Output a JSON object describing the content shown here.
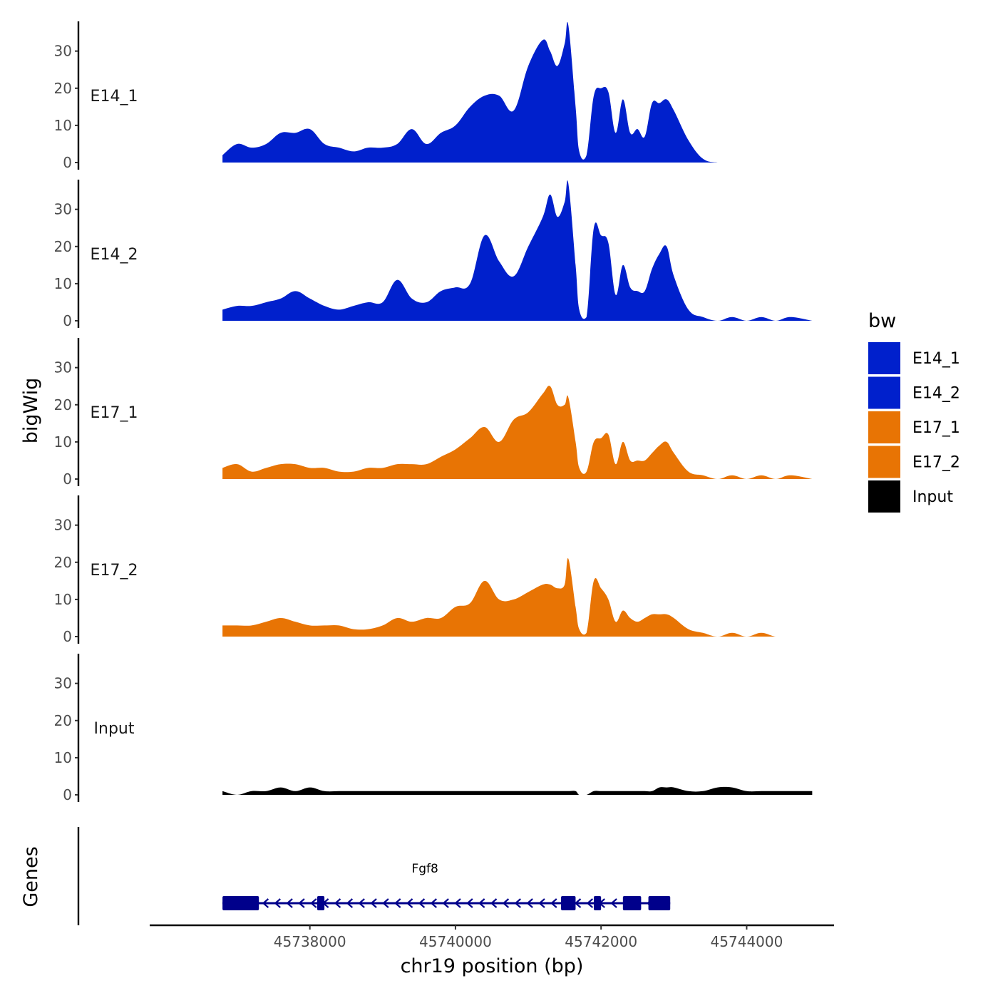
{
  "chart_data": {
    "type": "area",
    "title": "",
    "ylabel": "bigWig",
    "xlabel": "chr19 position (bp)",
    "ylim": [
      0,
      38
    ],
    "yticks": [
      0,
      10,
      20,
      30
    ],
    "xlim": [
      45735800,
      45745200
    ],
    "xticks": [
      45738000,
      45740000,
      45742000,
      45744000
    ],
    "xtick_labels": [
      "45738000",
      "45740000",
      "45742000",
      "45744000"
    ],
    "x": [
      45736800,
      45737000,
      45737200,
      45737400,
      45737600,
      45737800,
      45738000,
      45738200,
      45738400,
      45738600,
      45738800,
      45739000,
      45739200,
      45739400,
      45739600,
      45739800,
      45740000,
      45740200,
      45740400,
      45740600,
      45740800,
      45741000,
      45741200,
      45741300,
      45741400,
      45741500,
      45741550,
      45741650,
      45741700,
      45741800,
      45741900,
      45742000,
      45742100,
      45742200,
      45742300,
      45742400,
      45742500,
      45742600,
      45742700,
      45742800,
      45742900,
      45743000,
      45743200,
      45743400,
      45743600,
      45743800,
      45744000,
      45744200,
      45744400,
      45744600,
      45744900
    ],
    "series": [
      {
        "name": "E14_1",
        "color": "#0020CC",
        "values": [
          2,
          5,
          4,
          5,
          8,
          8,
          9,
          5,
          4,
          3,
          4,
          4,
          5,
          9,
          5,
          8,
          10,
          15,
          18,
          18,
          14,
          26,
          33,
          30,
          26,
          32,
          37,
          15,
          3,
          2,
          18,
          20,
          19,
          8,
          17,
          8,
          9,
          7,
          16,
          16,
          17,
          14,
          6,
          1,
          0,
          0,
          0,
          0,
          0,
          0,
          0
        ]
      },
      {
        "name": "E14_2",
        "color": "#0020CC",
        "values": [
          3,
          4,
          4,
          5,
          6,
          8,
          6,
          4,
          3,
          4,
          5,
          5,
          11,
          6,
          5,
          8,
          9,
          10,
          23,
          16,
          12,
          20,
          28,
          34,
          28,
          32,
          37,
          15,
          3,
          1,
          25,
          23,
          21,
          7,
          15,
          9,
          8,
          8,
          14,
          18,
          20,
          12,
          3,
          1,
          0,
          1,
          0,
          1,
          0,
          1,
          0
        ]
      },
      {
        "name": "E17_1",
        "color": "#E87404",
        "values": [
          3,
          4,
          2,
          3,
          4,
          4,
          3,
          3,
          2,
          2,
          3,
          3,
          4,
          4,
          4,
          6,
          8,
          11,
          14,
          10,
          16,
          18,
          23,
          25,
          20,
          20,
          22,
          10,
          3,
          2,
          10,
          11,
          12,
          4,
          10,
          5,
          5,
          5,
          7,
          9,
          10,
          7,
          2,
          1,
          0,
          1,
          0,
          1,
          0,
          1,
          0
        ]
      },
      {
        "name": "E17_2",
        "color": "#E87404",
        "values": [
          3,
          3,
          3,
          4,
          5,
          4,
          3,
          3,
          3,
          2,
          2,
          3,
          5,
          4,
          5,
          5,
          8,
          9,
          15,
          10,
          10,
          12,
          14,
          14,
          13,
          14,
          21,
          8,
          2,
          1,
          15,
          13,
          10,
          4,
          7,
          5,
          4,
          5,
          6,
          6,
          6,
          5,
          2,
          1,
          0,
          1,
          0,
          1,
          0,
          0,
          0
        ]
      },
      {
        "name": "Input",
        "color": "#000000",
        "values": [
          1,
          0,
          1,
          1,
          2,
          1,
          2,
          1,
          1,
          1,
          1,
          1,
          1,
          1,
          1,
          1,
          1,
          1,
          1,
          1,
          1,
          1,
          1,
          1,
          1,
          1,
          1,
          1,
          0,
          0,
          1,
          1,
          1,
          1,
          1,
          1,
          1,
          1,
          1,
          2,
          2,
          2,
          1,
          1,
          2,
          2,
          1,
          1,
          1,
          1,
          1
        ]
      }
    ],
    "legend": {
      "title": "bw",
      "position": "right",
      "entries": [
        {
          "label": "E14_1",
          "color": "#0020CC"
        },
        {
          "label": "E14_2",
          "color": "#0020CC"
        },
        {
          "label": "E17_1",
          "color": "#E87404"
        },
        {
          "label": "E17_2",
          "color": "#E87404"
        },
        {
          "label": "Input",
          "color": "#000000"
        }
      ]
    },
    "genes_track": {
      "label": "Genes",
      "color": "#00008B",
      "genes": [
        {
          "name": "Fgf8",
          "strand": "-",
          "start": 45736800,
          "end": 45742950,
          "exons": [
            [
              45736800,
              45737300
            ],
            [
              45738100,
              45738200
            ],
            [
              45741450,
              45741650
            ],
            [
              45741900,
              45742000
            ],
            [
              45742300,
              45742550
            ],
            [
              45742650,
              45742950
            ]
          ]
        }
      ]
    }
  }
}
